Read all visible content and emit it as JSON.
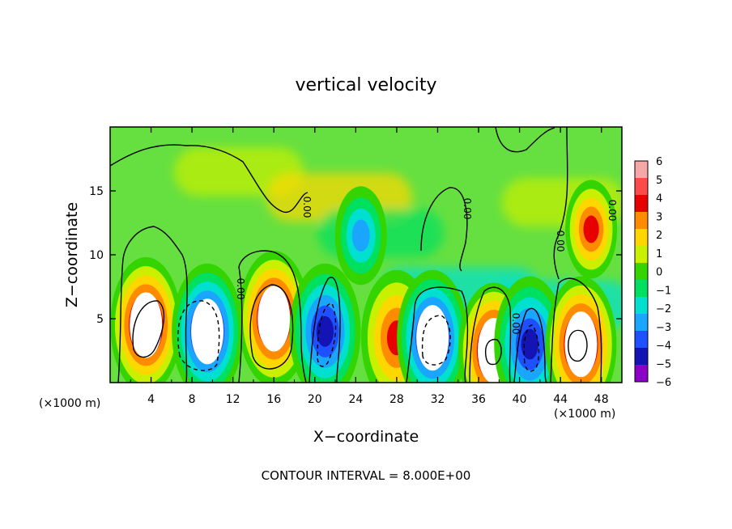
{
  "chart_data": {
    "type": "heatmap",
    "title": "vertical velocity",
    "xlabel": "X−coordinate",
    "ylabel": "Z−coordinate",
    "x_unit_note_left": "(×1000 m)",
    "x_unit_note_right": "(×1000 m)",
    "footer": "CONTOUR INTERVAL = 8.000E+00",
    "xlim": [
      0,
      50
    ],
    "ylim": [
      0,
      20
    ],
    "x_ticks": [
      "4",
      "8",
      "12",
      "16",
      "20",
      "24",
      "28",
      "32",
      "36",
      "40",
      "44",
      "48"
    ],
    "y_ticks": [
      "5",
      "10",
      "15"
    ],
    "colorbar": {
      "range": [
        -6,
        6
      ],
      "ticks": [
        "6",
        "5",
        "4",
        "3",
        "2",
        "1",
        "0",
        "−1",
        "−2",
        "−3",
        "−4",
        "−5",
        "−6"
      ],
      "colors": [
        "#f4a8a8",
        "#ff4a4a",
        "#e80000",
        "#ff8c00",
        "#ffd700",
        "#c8f000",
        "#34d400",
        "#00e060",
        "#00e0d0",
        "#1aa6ff",
        "#1e50ff",
        "#1414b4",
        "#8c00c8"
      ]
    },
    "contour_labels": [
      "0.00",
      "0.00",
      "0.00",
      "0.00",
      "0.00",
      "0.00"
    ],
    "cells": [
      {
        "x": 3.5,
        "z": 4.5,
        "w": 6.0,
        "sign": "up"
      },
      {
        "x": 9.5,
        "z": 4.0,
        "w": -6.0,
        "sign": "down"
      },
      {
        "x": 16.0,
        "z": 5.0,
        "w": 6.0,
        "sign": "up"
      },
      {
        "x": 21.0,
        "z": 4.0,
        "w": -5.0,
        "sign": "down"
      },
      {
        "x": 28.0,
        "z": 3.5,
        "w": 4.0,
        "sign": "up"
      },
      {
        "x": 31.5,
        "z": 3.5,
        "w": -6.0,
        "sign": "down"
      },
      {
        "x": 37.5,
        "z": 2.5,
        "w": 6.0,
        "sign": "up"
      },
      {
        "x": 41.0,
        "z": 3.0,
        "w": -5.0,
        "sign": "down"
      },
      {
        "x": 46.0,
        "z": 3.0,
        "w": 6.0,
        "sign": "up"
      },
      {
        "x": 47.0,
        "z": 12.0,
        "w": 3.5,
        "sign": "up"
      },
      {
        "x": 24.5,
        "z": 11.5,
        "w": -2.5,
        "sign": "down"
      }
    ]
  }
}
